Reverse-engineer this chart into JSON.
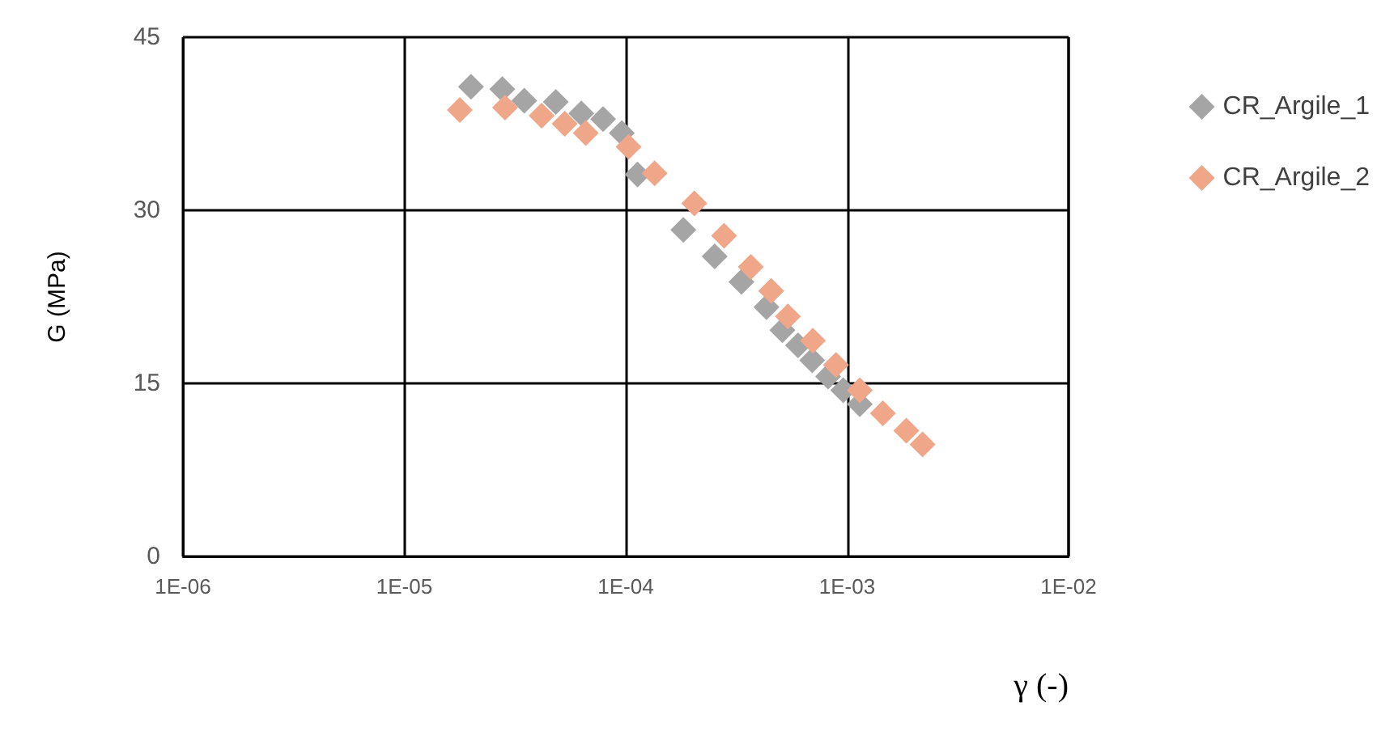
{
  "chart_data": {
    "type": "scatter",
    "xlabel": "γ (-)",
    "ylabel": "G (MPa)",
    "log": "x",
    "grid": true,
    "legend": "right",
    "marker": "diamond",
    "xlim": [
      1e-06,
      0.01
    ],
    "xticks": [
      {
        "value": 1e-06,
        "label": "1E-06"
      },
      {
        "value": 1e-05,
        "label": "1E-05"
      },
      {
        "value": 0.0001,
        "label": "1E-04"
      },
      {
        "value": 0.001,
        "label": "1E-03"
      },
      {
        "value": 0.01,
        "label": "1E-02"
      }
    ],
    "ylim": [
      0,
      45
    ],
    "yticks": [
      0,
      15,
      30,
      45
    ],
    "series": [
      {
        "name": "CR_Argile_1",
        "color": "#a5a5a5",
        "x": [
          2e-05,
          2.77e-05,
          3.48e-05,
          4.83e-05,
          6.3e-05,
          7.9e-05,
          9.6e-05,
          0.000113,
          0.000182,
          0.000252,
          0.000333,
          0.000432,
          0.00051,
          0.0006,
          0.000695,
          0.00082,
          0.00096,
          0.00114
        ],
        "values": [
          40.7,
          40.5,
          39.5,
          39.4,
          38.4,
          37.9,
          36.7,
          33.1,
          28.3,
          26.0,
          23.8,
          21.6,
          19.6,
          18.3,
          17.0,
          15.6,
          14.4,
          13.2
        ]
      },
      {
        "name": "CR_Argile_2",
        "color": "#f0a688",
        "x": [
          1.78e-05,
          2.85e-05,
          4.17e-05,
          5.3e-05,
          6.6e-05,
          0.000103,
          0.000135,
          0.000204,
          0.000278,
          0.000367,
          0.000454,
          0.00054,
          0.0007,
          0.00089,
          0.00114,
          0.00145,
          0.00185,
          0.00219
        ],
        "values": [
          38.7,
          38.9,
          38.2,
          37.5,
          36.7,
          35.5,
          33.2,
          30.6,
          27.8,
          25.1,
          23.0,
          20.8,
          18.7,
          16.6,
          14.4,
          12.4,
          10.9,
          9.7
        ]
      }
    ]
  }
}
